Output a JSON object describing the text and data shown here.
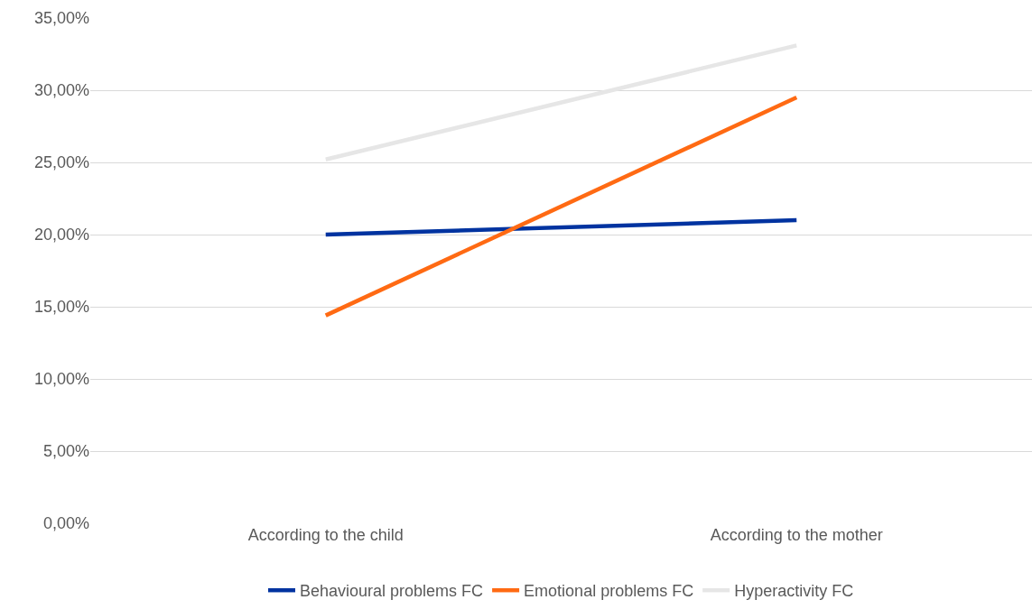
{
  "chart_data": {
    "type": "line",
    "categories": [
      "According to the child",
      "According to the mother"
    ],
    "series": [
      {
        "name": "Behavioural problems FC",
        "color": "#0033a0",
        "values": [
          20.0,
          21.0
        ]
      },
      {
        "name": "Emotional problems FC",
        "color": "#ff6a13",
        "values": [
          14.4,
          29.5
        ]
      },
      {
        "name": "Hyperactivity FC",
        "color": "#e6e6e6",
        "values": [
          25.2,
          33.1
        ]
      }
    ],
    "ylim": [
      0,
      35
    ],
    "yticks": [
      {
        "value": 0,
        "label": "0,00%"
      },
      {
        "value": 5,
        "label": "5,00%"
      },
      {
        "value": 10,
        "label": "10,00%"
      },
      {
        "value": 15,
        "label": "15,00%"
      },
      {
        "value": 20,
        "label": "20,00%"
      },
      {
        "value": 25,
        "label": "25,00%"
      },
      {
        "value": 30,
        "label": "30,00%"
      },
      {
        "value": 35,
        "label": "35,00%"
      }
    ],
    "grid": "y",
    "legend": "bottom",
    "marker": "none",
    "line_style": "solid"
  }
}
